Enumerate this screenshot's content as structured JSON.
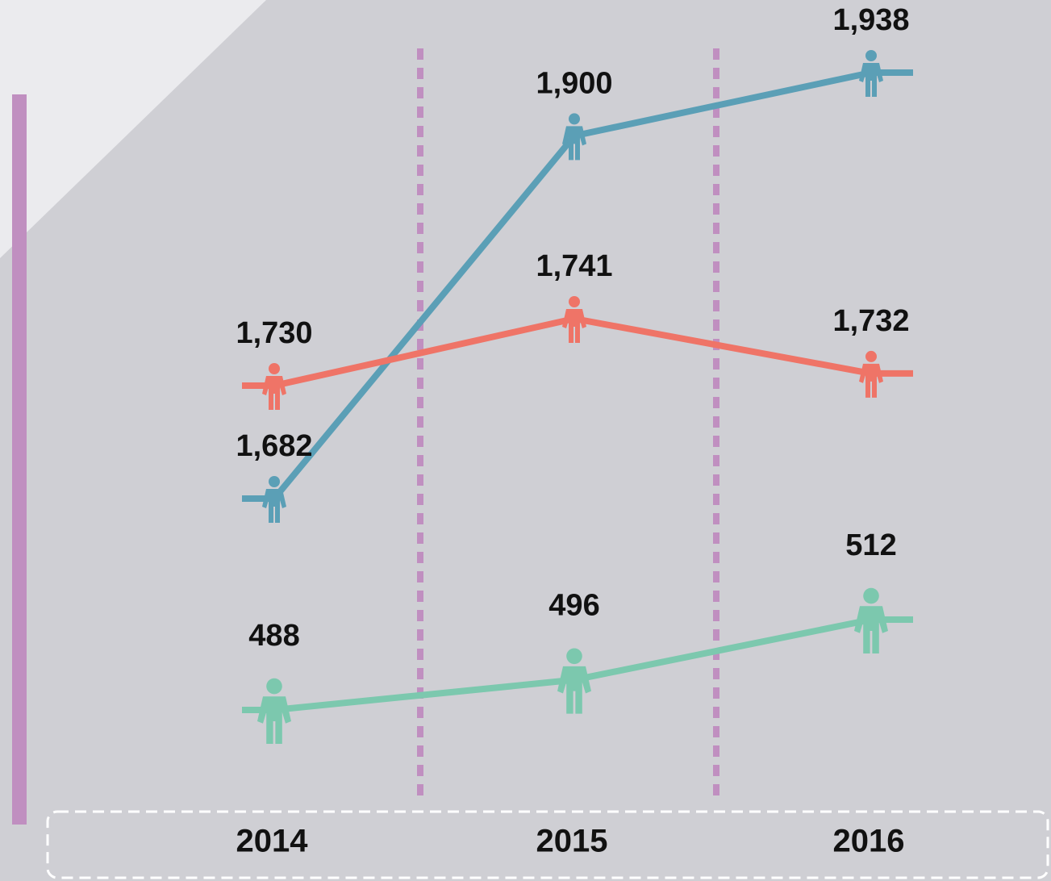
{
  "chart_data": {
    "type": "line",
    "categories": [
      "2014",
      "2015",
      "2016"
    ],
    "series": [
      {
        "color": "#5b9fb6",
        "values": [
          1682,
          1900,
          1938
        ],
        "value_labels": [
          "1,682",
          "1,900",
          "1,938"
        ]
      },
      {
        "color": "#ef7467",
        "values": [
          1730,
          1741,
          1732
        ],
        "value_labels": [
          "1,730",
          "1,741",
          "1,732"
        ]
      },
      {
        "color": "#7cc8ae",
        "values": [
          488,
          496,
          512
        ],
        "value_labels": [
          "488",
          "496",
          "512"
        ]
      }
    ]
  }
}
